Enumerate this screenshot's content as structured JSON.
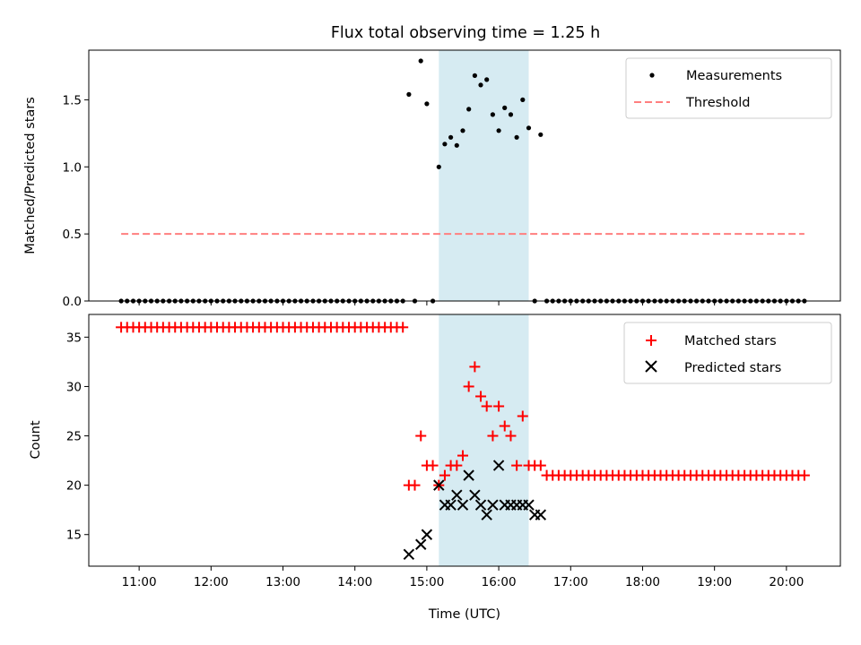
{
  "figure": {
    "title": "Flux total observing time = 1.25 h",
    "xlabel": "Time (UTC)"
  },
  "colors": {
    "matched": "#ff0000",
    "predicted": "#000000",
    "threshold": "#ff7f7f",
    "highlight": "#add8e6",
    "measurement": "#000000"
  },
  "chart_data": [
    {
      "type": "scatter",
      "ylabel": "Matched/Predicted stars",
      "x_unit": "hours UTC",
      "xlim": [
        10.3,
        20.75
      ],
      "ylim": [
        0,
        1.87
      ],
      "yticks": [
        0.0,
        0.5,
        1.0,
        1.5
      ],
      "ytick_labels": [
        "0.0",
        "0.5",
        "1.0",
        "1.5"
      ],
      "xticks": [
        11,
        12,
        13,
        14,
        15,
        16,
        17,
        18,
        19,
        20
      ],
      "xtick_labels": [
        "11:00",
        "12:00",
        "13:00",
        "14:00",
        "15:00",
        "16:00",
        "17:00",
        "18:00",
        "19:00",
        "20:00"
      ],
      "shaded_interval": [
        15.167,
        16.417
      ],
      "legend_position": "top-right",
      "series": [
        {
          "name": "Measurements",
          "marker": "dot",
          "x": [
            10.75,
            10.833,
            10.917,
            11.0,
            11.083,
            11.167,
            11.25,
            11.333,
            11.417,
            11.5,
            11.583,
            11.667,
            11.75,
            11.833,
            11.917,
            12.0,
            12.083,
            12.167,
            12.25,
            12.333,
            12.417,
            12.5,
            12.583,
            12.667,
            12.75,
            12.833,
            12.917,
            13.0,
            13.083,
            13.167,
            13.25,
            13.333,
            13.417,
            13.5,
            13.583,
            13.667,
            13.75,
            13.833,
            13.917,
            14.0,
            14.083,
            14.167,
            14.25,
            14.333,
            14.417,
            14.5,
            14.583,
            14.667,
            14.75,
            14.833,
            14.917,
            15.0,
            15.083,
            15.167,
            15.25,
            15.333,
            15.417,
            15.5,
            15.583,
            15.667,
            15.75,
            15.833,
            15.917,
            16.0,
            16.083,
            16.167,
            16.25,
            16.333,
            16.417,
            16.5,
            16.583,
            16.667,
            16.75,
            16.833,
            16.917,
            17.0,
            17.083,
            17.167,
            17.25,
            17.333,
            17.417,
            17.5,
            17.583,
            17.667,
            17.75,
            17.833,
            17.917,
            18.0,
            18.083,
            18.167,
            18.25,
            18.333,
            18.417,
            18.5,
            18.583,
            18.667,
            18.75,
            18.833,
            18.917,
            19.0,
            19.083,
            19.167,
            19.25,
            19.333,
            19.417,
            19.5,
            19.583,
            19.667,
            19.75,
            19.833,
            19.917,
            20.0,
            20.083,
            20.167,
            20.25
          ],
          "y": [
            0,
            0,
            0,
            0,
            0,
            0,
            0,
            0,
            0,
            0,
            0,
            0,
            0,
            0,
            0,
            0,
            0,
            0,
            0,
            0,
            0,
            0,
            0,
            0,
            0,
            0,
            0,
            0,
            0,
            0,
            0,
            0,
            0,
            0,
            0,
            0,
            0,
            0,
            0,
            0,
            0,
            0,
            0,
            0,
            0,
            0,
            0,
            0,
            1.54,
            0,
            1.79,
            1.47,
            0,
            1.0,
            1.17,
            1.22,
            1.16,
            1.27,
            1.43,
            1.68,
            1.61,
            1.65,
            1.39,
            1.27,
            1.44,
            1.39,
            1.22,
            1.5,
            1.29,
            0,
            1.24,
            0,
            0,
            0,
            0,
            0,
            0,
            0,
            0,
            0,
            0,
            0,
            0,
            0,
            0,
            0,
            0,
            0,
            0,
            0,
            0,
            0,
            0,
            0,
            0,
            0,
            0,
            0,
            0,
            0,
            0,
            0,
            0,
            0,
            0,
            0,
            0,
            0,
            0,
            0,
            0,
            0,
            0,
            0,
            0
          ]
        },
        {
          "name": "Threshold",
          "style": "dashed",
          "x": [
            10.75,
            20.25
          ],
          "y": [
            0.5,
            0.5
          ]
        }
      ]
    },
    {
      "type": "scatter",
      "ylabel": "Count",
      "x_unit": "hours UTC",
      "xlim": [
        10.3,
        20.75
      ],
      "ylim": [
        11.8,
        37.3
      ],
      "yticks": [
        15,
        20,
        25,
        30,
        35
      ],
      "ytick_labels": [
        "15",
        "20",
        "25",
        "30",
        "35"
      ],
      "xticks": [
        11,
        12,
        13,
        14,
        15,
        16,
        17,
        18,
        19,
        20
      ],
      "xtick_labels": [
        "11:00",
        "12:00",
        "13:00",
        "14:00",
        "15:00",
        "16:00",
        "17:00",
        "18:00",
        "19:00",
        "20:00"
      ],
      "shaded_interval": [
        15.167,
        16.417
      ],
      "legend_position": "top-right",
      "series": [
        {
          "name": "Matched stars",
          "marker": "plus",
          "x": [
            10.75,
            10.833,
            10.917,
            11.0,
            11.083,
            11.167,
            11.25,
            11.333,
            11.417,
            11.5,
            11.583,
            11.667,
            11.75,
            11.833,
            11.917,
            12.0,
            12.083,
            12.167,
            12.25,
            12.333,
            12.417,
            12.5,
            12.583,
            12.667,
            12.75,
            12.833,
            12.917,
            13.0,
            13.083,
            13.167,
            13.25,
            13.333,
            13.417,
            13.5,
            13.583,
            13.667,
            13.75,
            13.833,
            13.917,
            14.0,
            14.083,
            14.167,
            14.25,
            14.333,
            14.417,
            14.5,
            14.583,
            14.667,
            14.75,
            14.833,
            14.917,
            15.0,
            15.083,
            15.167,
            15.25,
            15.333,
            15.417,
            15.5,
            15.583,
            15.667,
            15.75,
            15.833,
            15.917,
            16.0,
            16.083,
            16.167,
            16.25,
            16.333,
            16.417,
            16.5,
            16.583,
            16.667,
            16.75,
            16.833,
            16.917,
            17.0,
            17.083,
            17.167,
            17.25,
            17.333,
            17.417,
            17.5,
            17.583,
            17.667,
            17.75,
            17.833,
            17.917,
            18.0,
            18.083,
            18.167,
            18.25,
            18.333,
            18.417,
            18.5,
            18.583,
            18.667,
            18.75,
            18.833,
            18.917,
            19.0,
            19.083,
            19.167,
            19.25,
            19.333,
            19.417,
            19.5,
            19.583,
            19.667,
            19.75,
            19.833,
            19.917,
            20.0,
            20.083,
            20.167,
            20.25
          ],
          "y": [
            36,
            36,
            36,
            36,
            36,
            36,
            36,
            36,
            36,
            36,
            36,
            36,
            36,
            36,
            36,
            36,
            36,
            36,
            36,
            36,
            36,
            36,
            36,
            36,
            36,
            36,
            36,
            36,
            36,
            36,
            36,
            36,
            36,
            36,
            36,
            36,
            36,
            36,
            36,
            36,
            36,
            36,
            36,
            36,
            36,
            36,
            36,
            36,
            20,
            20,
            25,
            22,
            22,
            20,
            21,
            22,
            22,
            23,
            30,
            32,
            29,
            28,
            25,
            28,
            26,
            25,
            22,
            27,
            22,
            22,
            22,
            21,
            21,
            21,
            21,
            21,
            21,
            21,
            21,
            21,
            21,
            21,
            21,
            21,
            21,
            21,
            21,
            21,
            21,
            21,
            21,
            21,
            21,
            21,
            21,
            21,
            21,
            21,
            21,
            21,
            21,
            21,
            21,
            21,
            21,
            21,
            21,
            21,
            21,
            21,
            21,
            21,
            21,
            21,
            21
          ]
        },
        {
          "name": "Predicted stars",
          "marker": "x",
          "x": [
            14.75,
            14.917,
            15.0,
            15.167,
            15.25,
            15.333,
            15.417,
            15.5,
            15.583,
            15.667,
            15.75,
            15.833,
            15.917,
            16.0,
            16.083,
            16.167,
            16.25,
            16.333,
            16.417,
            16.5,
            16.583
          ],
          "y": [
            13,
            14,
            15,
            20,
            18,
            18,
            19,
            18,
            21,
            19,
            18,
            17,
            18,
            22,
            18,
            18,
            18,
            18,
            18,
            17,
            17
          ]
        }
      ]
    }
  ]
}
